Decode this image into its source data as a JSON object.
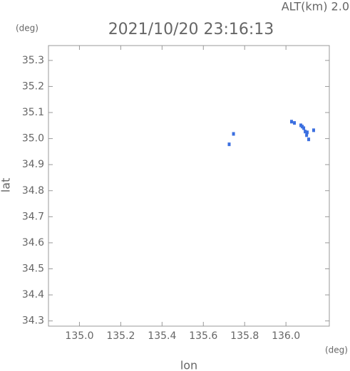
{
  "chart_data": {
    "type": "scatter",
    "title": "2021/10/20 23:16:13",
    "subtitle": "ALT(km)  2.0",
    "y_unit": "(deg)",
    "x_unit": "(deg)",
    "xlabel": "lon",
    "ylabel": "lat",
    "xlim": [
      134.85,
      136.21
    ],
    "ylim": [
      34.28,
      35.357
    ],
    "xticks": [
      {
        "value": 135.0,
        "label": "135.0"
      },
      {
        "value": 135.2,
        "label": "135.2"
      },
      {
        "value": 135.4,
        "label": "135.4"
      },
      {
        "value": 135.6,
        "label": "135.6"
      },
      {
        "value": 135.8,
        "label": "135.8"
      },
      {
        "value": 136.0,
        "label": "136.0"
      }
    ],
    "yticks": [
      {
        "value": 34.3,
        "label": "34.3"
      },
      34.4,
      34.5,
      34.6,
      34.7,
      34.8,
      34.9,
      {
        "value": 35.0,
        "label": "35.0"
      },
      35.1,
      35.2,
      35.3
    ],
    "series": [
      {
        "color": "#3b6fe0",
        "x": [
          135.746,
          135.725,
          136.027,
          136.041,
          136.072,
          136.079,
          136.086,
          136.093,
          136.1,
          136.103,
          136.11,
          136.134
        ],
        "values": [
          35.018,
          34.978,
          35.065,
          35.06,
          35.051,
          35.046,
          35.04,
          35.027,
          35.013,
          35.024,
          34.997,
          35.032
        ]
      }
    ]
  }
}
